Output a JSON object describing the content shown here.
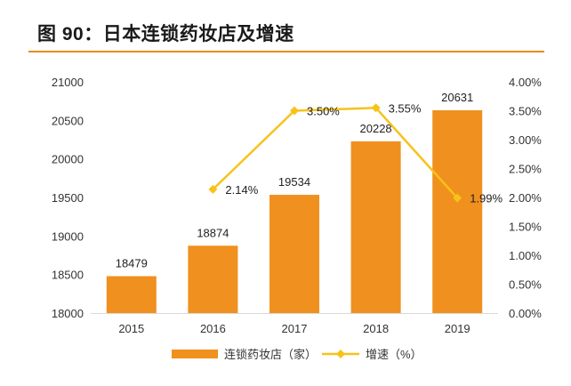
{
  "title": "图 90：日本连锁药妆店及增速",
  "chart_data": {
    "type": "bar",
    "categories": [
      "2015",
      "2016",
      "2017",
      "2018",
      "2019"
    ],
    "series": [
      {
        "name": "连锁药妆店（家）",
        "type": "bar",
        "axis": "left",
        "color": "#f0901e",
        "values": [
          18479,
          18874,
          19534,
          20228,
          20631
        ],
        "labels": [
          "18479",
          "18874",
          "19534",
          "20228",
          "20631"
        ]
      },
      {
        "name": "增速（%）",
        "type": "line",
        "axis": "right",
        "color": "#f7c21a",
        "values": [
          null,
          2.14,
          3.5,
          3.55,
          1.99
        ],
        "labels": [
          "",
          "2.14%",
          "3.50%",
          "3.55%",
          "1.99%"
        ]
      }
    ],
    "y_left": {
      "min": 18000,
      "max": 21000,
      "ticks": [
        "18000",
        "18500",
        "19000",
        "19500",
        "20000",
        "20500",
        "21000"
      ]
    },
    "y_right": {
      "min": 0,
      "max": 4,
      "ticks": [
        "0.00%",
        "0.50%",
        "1.00%",
        "1.50%",
        "2.00%",
        "2.50%",
        "3.00%",
        "3.50%",
        "4.00%"
      ]
    },
    "legend_position": "bottom",
    "grid": false
  }
}
